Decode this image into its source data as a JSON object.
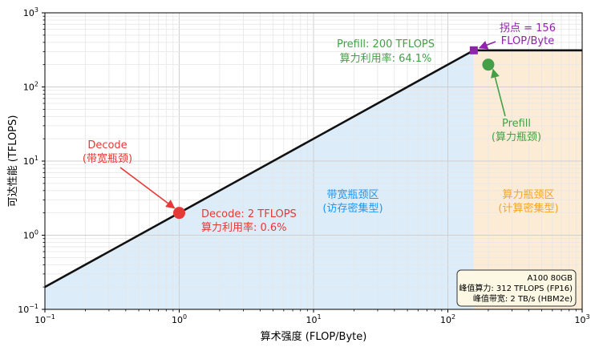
{
  "chart_data": {
    "type": "line",
    "xlabel": "算术强度 (FLOP/Byte)",
    "ylabel": "可达性能 (TFLOPS)",
    "x_scale": "log",
    "y_scale": "log",
    "xlim": [
      0.1,
      1000
    ],
    "ylim": [
      0.1,
      1000
    ],
    "grid": true,
    "x_ticks": [
      {
        "value": 0.1,
        "base": "10",
        "exp": "−1"
      },
      {
        "value": 1,
        "base": "10",
        "exp": "0"
      },
      {
        "value": 10,
        "base": "10",
        "exp": "1"
      },
      {
        "value": 100,
        "base": "10",
        "exp": "2"
      },
      {
        "value": 1000,
        "base": "10",
        "exp": "3"
      }
    ],
    "y_ticks": [
      {
        "value": 0.1,
        "base": "10",
        "exp": "−1"
      },
      {
        "value": 1,
        "base": "10",
        "exp": "0"
      },
      {
        "value": 10,
        "base": "10",
        "exp": "1"
      },
      {
        "value": 100,
        "base": "10",
        "exp": "2"
      },
      {
        "value": 1000,
        "base": "10",
        "exp": "3"
      }
    ],
    "roofline": {
      "x": [
        0.1,
        156,
        1000
      ],
      "y": [
        0.2,
        312,
        312
      ],
      "color": "#111111"
    },
    "ridge_point": {
      "x": 156,
      "y": 312,
      "color": "#8e24aa",
      "label_lines": [
        "拐点 = 156",
        "FLOP/Byte"
      ]
    },
    "points": [
      {
        "name": "Decode",
        "x": 1,
        "y": 2,
        "color": "#e53935",
        "value_lines": [
          "Decode: 2 TFLOPS",
          "算力利用率: 0.6%"
        ],
        "callout_lines": [
          "Decode",
          "(带宽瓶颈)"
        ]
      },
      {
        "name": "Prefill",
        "x": 200,
        "y": 200,
        "color": "#43a047",
        "value_lines": [
          "Prefill: 200 TFLOPS",
          "算力利用率: 64.1%"
        ],
        "callout_lines": [
          "Prefill",
          "(算力瓶颈)"
        ]
      }
    ],
    "regions": [
      {
        "label_lines": [
          "带宽瓶颈区",
          "(访存密集型)"
        ],
        "fill": "#dcecf9",
        "text_color": "#2196f3"
      },
      {
        "label_lines": [
          "算力瓶颈区",
          "(计算密集型)"
        ],
        "fill": "#fcecd6",
        "text_color": "#f5a623"
      }
    ],
    "info_box": {
      "lines": [
        "A100 80GB",
        "峰值算力: 312 TFLOPS (FP16)",
        "峰值带宽: 2 TB/s (HBM2e)"
      ],
      "fill": "#fdf8e4"
    }
  }
}
